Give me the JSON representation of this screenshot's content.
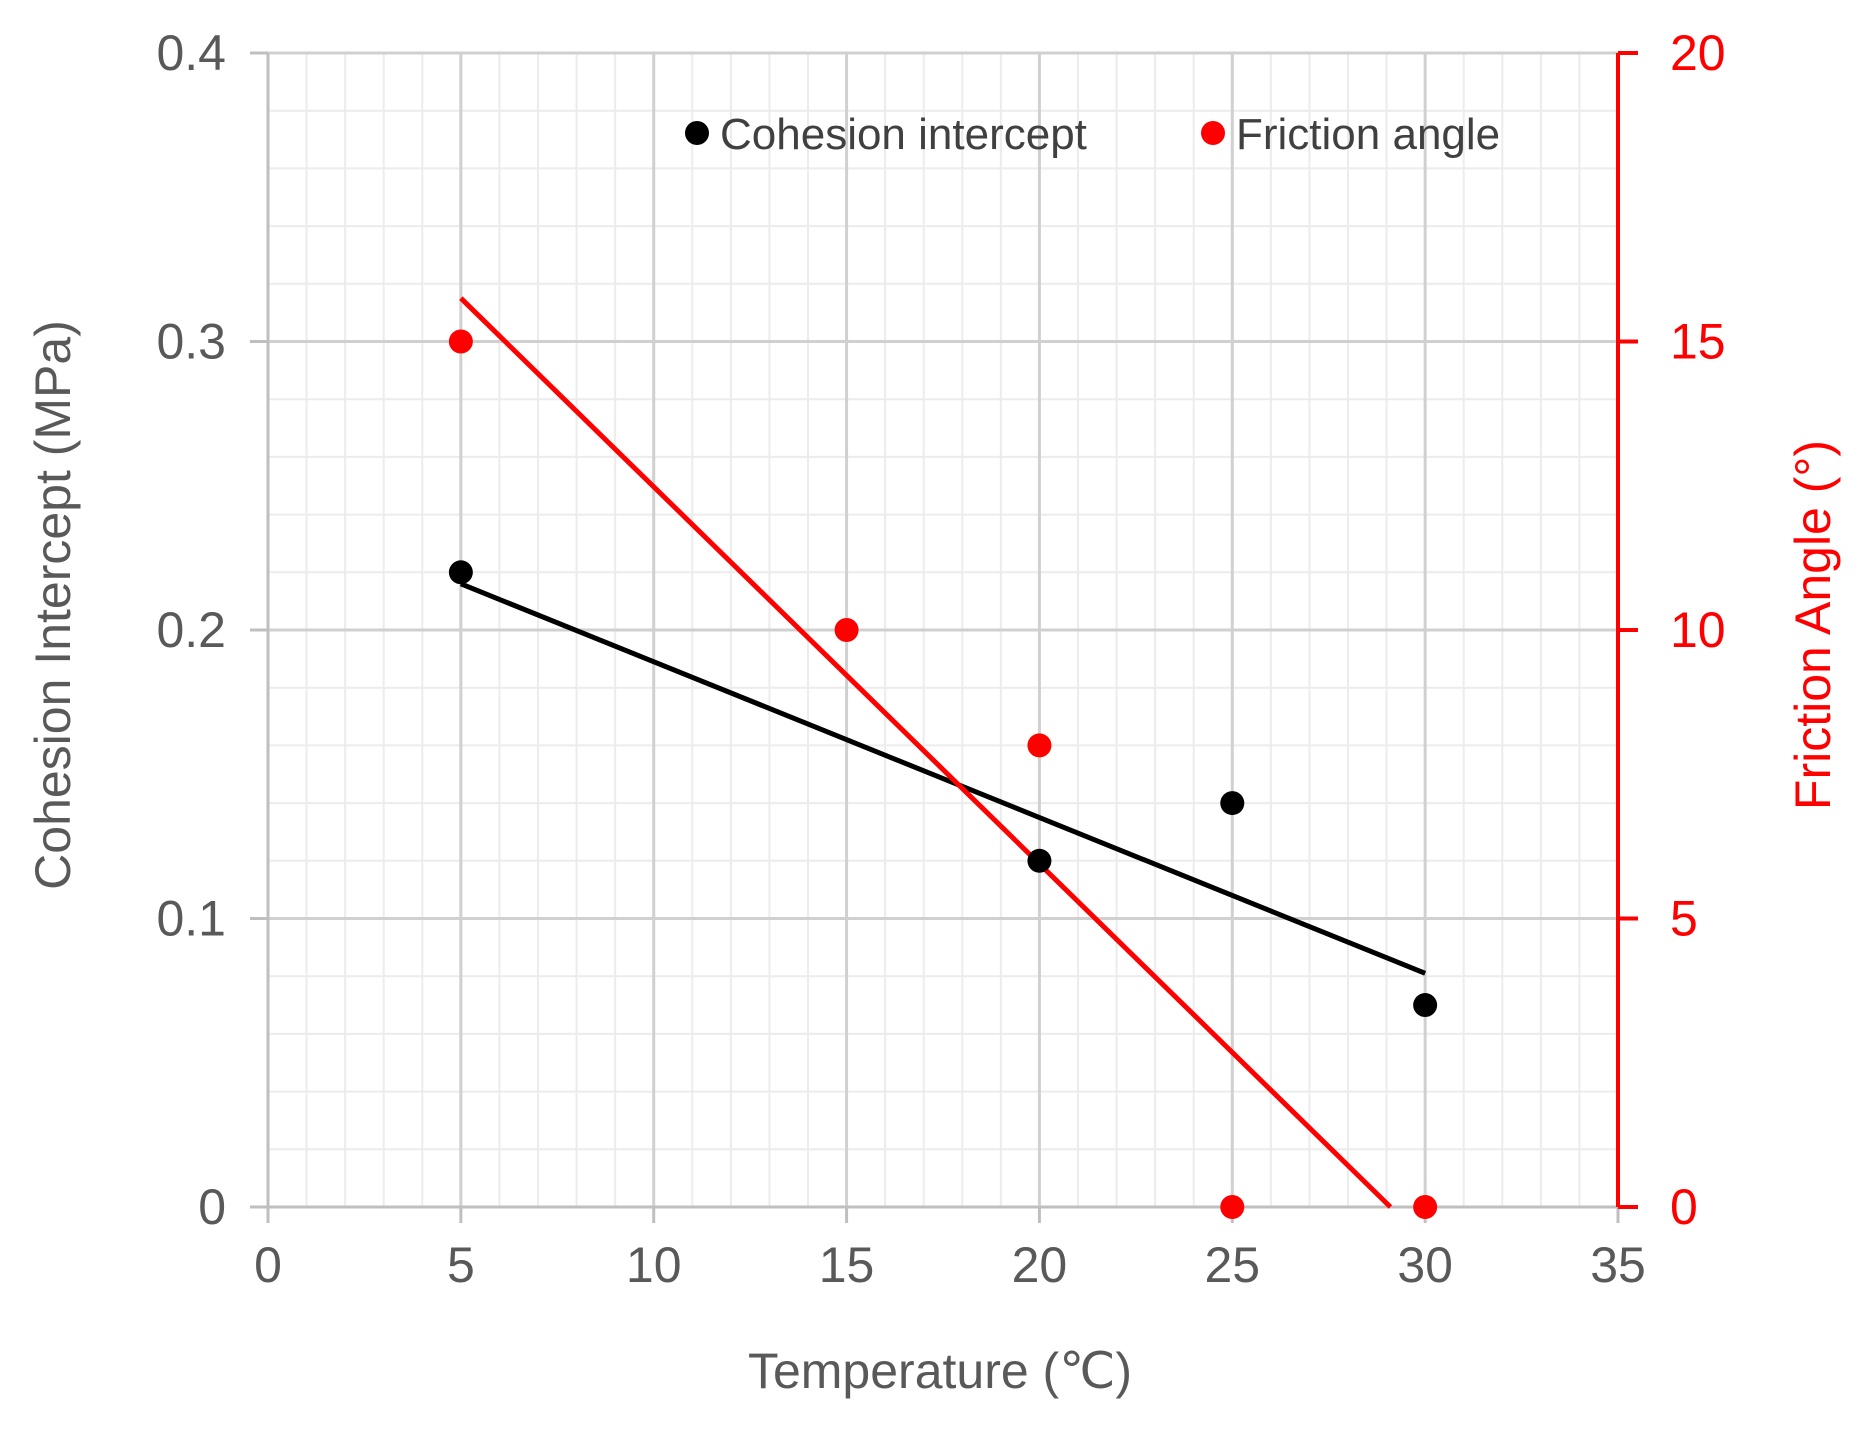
{
  "chart_data": {
    "type": "scatter",
    "title": "",
    "xlabel": "Temperature (℃)",
    "ylabel_left": "Cohesion Intercept (MPa)",
    "ylabel_right": "Friction Angle (°)",
    "xlim": [
      0,
      35
    ],
    "ylim_left": [
      0,
      0.4
    ],
    "ylim_right": [
      0,
      20
    ],
    "x_ticks": [
      "0",
      "5",
      "10",
      "15",
      "20",
      "25",
      "30",
      "35"
    ],
    "y_left_ticks": [
      "0",
      "0.1",
      "0.2",
      "0.3",
      "0.4"
    ],
    "y_right_ticks": [
      "0",
      "5",
      "10",
      "15",
      "20"
    ],
    "grid": true,
    "legend_position": "top",
    "series": [
      {
        "name": "Cohesion intercept",
        "axis": "left",
        "color": "#000000",
        "points": [
          {
            "x": 5,
            "y": 0.22
          },
          {
            "x": 20,
            "y": 0.12
          },
          {
            "x": 25,
            "y": 0.14
          },
          {
            "x": 30,
            "y": 0.07
          }
        ],
        "trendline": {
          "x": [
            5,
            30
          ],
          "y": [
            0.216,
            0.081
          ]
        }
      },
      {
        "name": "Friction angle",
        "axis": "right",
        "color": "#ff0000",
        "points": [
          {
            "x": 5,
            "y": 15
          },
          {
            "x": 15,
            "y": 10
          },
          {
            "x": 20,
            "y": 8
          },
          {
            "x": 25,
            "y": 0
          },
          {
            "x": 30,
            "y": 0
          }
        ],
        "trendline": {
          "x": [
            5,
            29.1
          ],
          "y": [
            15.75,
            0
          ]
        }
      }
    ]
  }
}
